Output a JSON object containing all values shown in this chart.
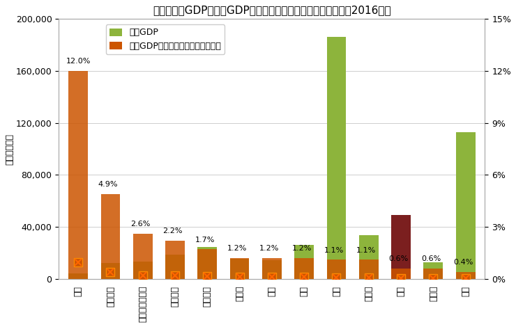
{
  "title": "各国の名目GDPと名目GDPに対するインバウンド消費の割合（2016年）",
  "ylabel_left": "（億米ドル）",
  "countries": [
    "タイ",
    "スペイン",
    "オーストラリア",
    "イタリア",
    "フランス",
    "カナダ",
    "韓国",
    "英国",
    "米国",
    "ドイツ",
    "日本",
    "ロシア",
    "中国"
  ],
  "gdp": [
    4070,
    12370,
    13230,
    18580,
    24650,
    15290,
    14110,
    26190,
    186000,
    33550,
    49400,
    12830,
    113000
  ],
  "inbound_ratio": [
    12.0,
    4.9,
    2.6,
    2.2,
    1.7,
    1.2,
    1.2,
    1.2,
    1.1,
    1.1,
    0.6,
    0.6,
    0.4
  ],
  "inbound_labels": [
    "12.0%",
    "4.9%",
    "2.6%",
    "2.2%",
    "1.7%",
    "1.2%",
    "1.2%",
    "1.2%",
    "1.1%",
    "1.1%",
    "0.6%",
    "0.6%",
    "0.4%"
  ],
  "gdp_bar_colors": [
    "#8DB43C",
    "#8DB43C",
    "#8DB43C",
    "#8DB43C",
    "#8DB43C",
    "#8DB43C",
    "#8DB43C",
    "#8DB43C",
    "#8DB43C",
    "#8DB43C",
    "#7B1F1F",
    "#8DB43C",
    "#8DB43C"
  ],
  "inbound_bar_color": "#CC5500",
  "inbound_marker_color": "#CC5500",
  "inbound_marker_edge": "#FF8C00",
  "ylim_left": [
    0,
    200000
  ],
  "ylim_right": [
    0,
    15
  ],
  "yticks_left": [
    0,
    40000,
    80000,
    120000,
    160000,
    200000
  ],
  "ytick_labels_left": [
    "0",
    "40,000",
    "80,000",
    "120,000",
    "160,000",
    "200,000"
  ],
  "yticks_right": [
    0,
    3,
    6,
    9,
    12,
    15
  ],
  "ytick_labels_right": [
    "0%",
    "3%",
    "6%",
    "9%",
    "12%",
    "15%"
  ],
  "legend_gdp_label": "名目GDP",
  "legend_inbound_label": "名目GDPに対するインバウンド消費",
  "background_color": "#FFFFFF",
  "grid_color": "#BBBBBB",
  "title_fontsize": 11,
  "axis_label_fontsize": 9,
  "tick_fontsize": 9,
  "legend_fontsize": 9,
  "annot_fontsize": 8
}
